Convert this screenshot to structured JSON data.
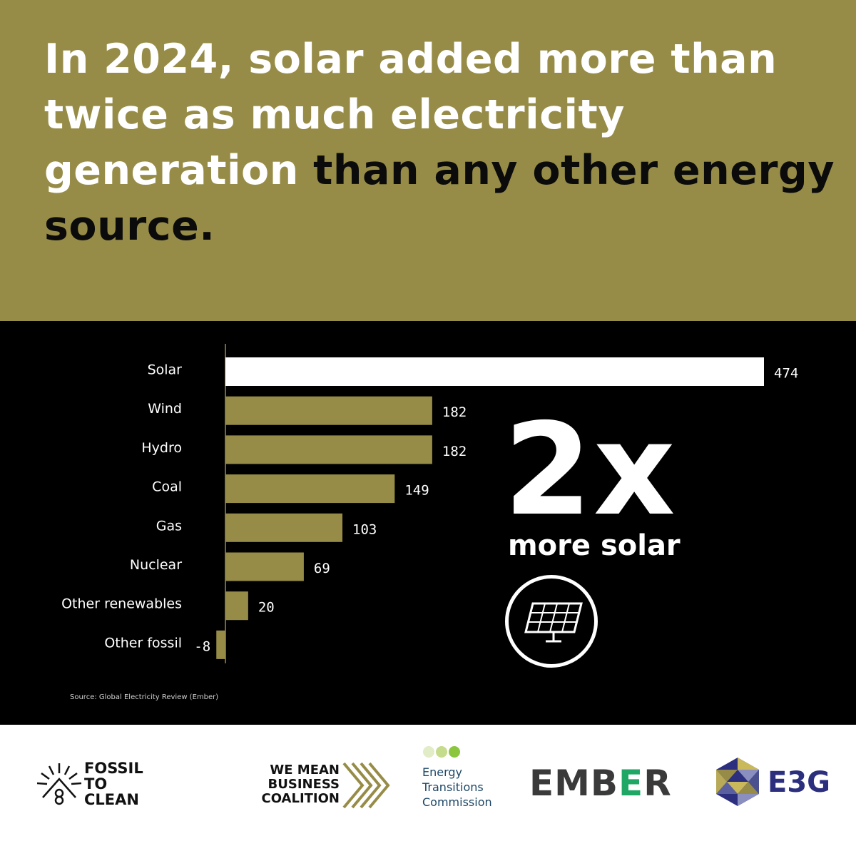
{
  "headline": {
    "light": "In 2024, solar added more than twice as much electricity generation",
    "dark": "than any other energy source."
  },
  "chart_data": {
    "type": "bar",
    "orientation": "horizontal",
    "categories": [
      "Solar",
      "Wind",
      "Hydro",
      "Coal",
      "Gas",
      "Nuclear",
      "Other renewables",
      "Other fossil"
    ],
    "values": [
      474,
      182,
      182,
      149,
      103,
      69,
      20,
      -8
    ],
    "value_labels": [
      "474",
      "182",
      "182",
      "149",
      "103",
      "69",
      "20",
      "-8"
    ],
    "highlight": "Solar",
    "colors": {
      "highlight": "#ffffff",
      "bar": "#978c47",
      "background": "#000000"
    },
    "xlim": [
      -8,
      474
    ],
    "grid": false,
    "legend": false
  },
  "stat": {
    "value": "2x",
    "caption": "more solar",
    "icon": "solar-panel-icon"
  },
  "source": "Source: Global Electricity Review (Ember)",
  "logos": {
    "fossil_to_clean": {
      "lines": [
        "FOSSIL",
        "TO",
        "CLEAN"
      ],
      "icon": "sunburst-house-icon"
    },
    "we_mean_business": {
      "lines": [
        "WE MEAN",
        "BUSINESS",
        "COALITION"
      ],
      "icon": "chevrons-icon",
      "color": "#978c47"
    },
    "etc": {
      "lines": [
        "Energy",
        "Transitions",
        "Commission"
      ],
      "icon": "three-dots-icon",
      "dot_colors": [
        "#e2ecc6",
        "#c4dc8c",
        "#8cc63f"
      ]
    },
    "ember": {
      "before": "EMB",
      "e": "E",
      "after": "R",
      "accent": "#1fa765"
    },
    "e3g": {
      "text": "E3G",
      "icon": "triangle-hexagon-icon",
      "color": "#2b2f7e"
    }
  },
  "theme": {
    "olive": "#978c47",
    "black": "#000000",
    "white": "#ffffff"
  }
}
